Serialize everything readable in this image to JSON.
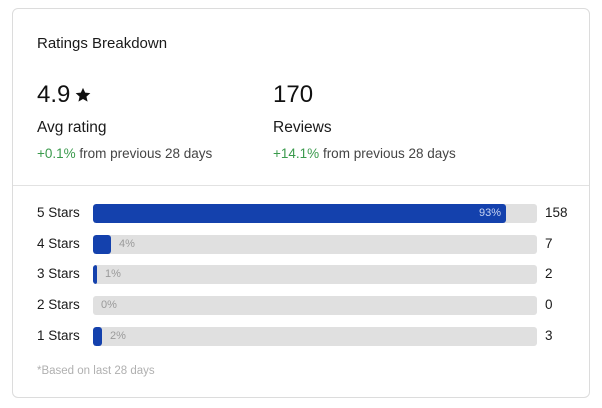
{
  "card": {
    "title": "Ratings Breakdown"
  },
  "avg": {
    "value": "4.9",
    "icon": "star-icon",
    "label": "Avg rating",
    "delta": "+0.1%",
    "delta_suffix": "from previous 28 days"
  },
  "reviews": {
    "value": "170",
    "label": "Reviews",
    "delta": "+14.1%",
    "delta_suffix": "from previous 28 days"
  },
  "breakdown": {
    "rows": [
      {
        "label": "5 Stars",
        "percent": 93,
        "percent_text": "93%",
        "count": "158"
      },
      {
        "label": "4 Stars",
        "percent": 4,
        "percent_text": "4%",
        "count": "7"
      },
      {
        "label": "3 Stars",
        "percent": 1,
        "percent_text": "1%",
        "count": "2"
      },
      {
        "label": "2 Stars",
        "percent": 0,
        "percent_text": "0%",
        "count": "0"
      },
      {
        "label": "1 Stars",
        "percent": 2,
        "percent_text": "2%",
        "count": "3"
      }
    ]
  },
  "footnote": "*Based on last 28 days",
  "colors": {
    "bar_fill": "#1441ad",
    "bar_track": "#e0e0e0",
    "delta_positive": "#3a9a4c"
  }
}
